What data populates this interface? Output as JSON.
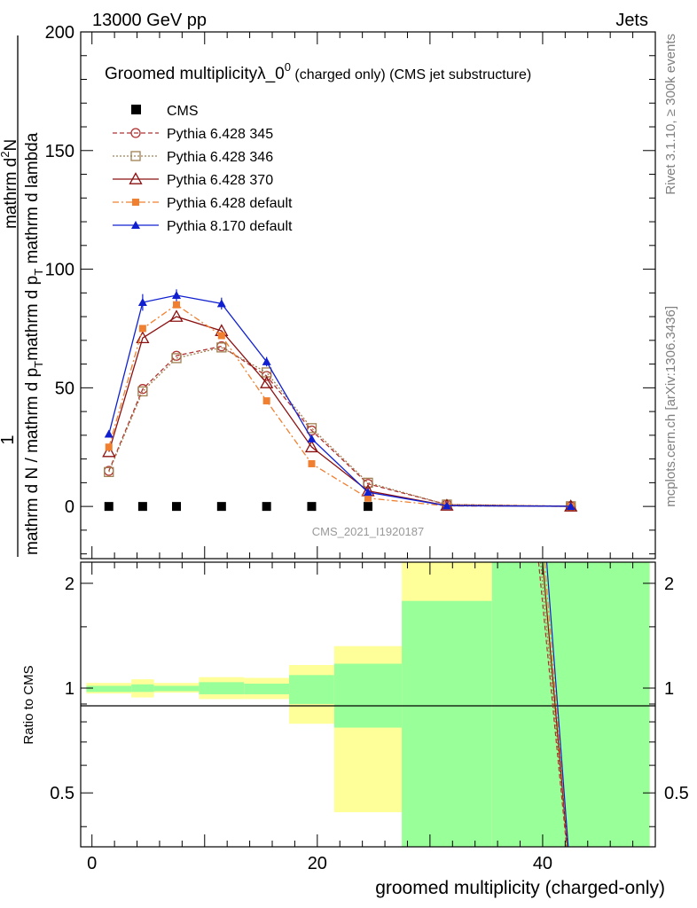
{
  "header": {
    "left": "13000 GeV pp",
    "right": "Jets"
  },
  "side": {
    "rivet": "Rivet 3.1.10, ≥ 300k events",
    "mcplots": "mcplots.cern.ch [arXiv:1306.3436]"
  },
  "watermark": "CMS_2021_I1920187",
  "legend_title": {
    "main": "Groomed multiplicityλ_0",
    "sup": "0",
    "rest": " (charged only) (CMS jet substructure)"
  },
  "ylabel": {
    "one": "1",
    "den": "mathrm d N / mathrm d p",
    "den_sub": "T",
    "num": "mathrm d",
    "num_sup": "2",
    "num_tail": "N",
    "bottom": "mathrm d p",
    "bottom_sub": "T",
    "bottom_tail": " mathrm d lambda"
  },
  "ratio_ylabel": "Ratio to CMS",
  "chart_data": {
    "type": "line",
    "title": "Groomed multiplicityλ_0^0 (charged only) (CMS jet substructure)",
    "xlabel": "groomed multiplicity (charged-only)",
    "ylabel": "1/(dN/dpT) d2N/(dpT dlambda)",
    "xlim": [
      -1,
      50
    ],
    "ylim": [
      -22,
      200
    ],
    "x_ticks": [
      0,
      20,
      40
    ],
    "x_tick_labels": [
      "0",
      "20",
      "40"
    ],
    "y_ticks": [
      0,
      50,
      100,
      150,
      200
    ],
    "y_tick_labels": [
      "0",
      "50",
      "100",
      "150",
      "200"
    ],
    "ratio": {
      "ylim": [
        0.35,
        2.3
      ],
      "y_ticks": [
        0.5,
        1,
        2
      ],
      "y_tick_labels": [
        "0.5",
        "1",
        "2"
      ],
      "bands": [
        {
          "x0": -0.5,
          "x1": 3.5,
          "g_lo": 0.975,
          "g_hi": 1.015,
          "y_lo": 0.965,
          "y_hi": 1.035
        },
        {
          "x0": 3.5,
          "x1": 5.5,
          "g_lo": 0.975,
          "g_hi": 1.025,
          "y_lo": 0.94,
          "y_hi": 1.06
        },
        {
          "x0": 5.5,
          "x1": 9.5,
          "g_lo": 0.98,
          "g_hi": 1.015,
          "y_lo": 0.97,
          "y_hi": 1.035
        },
        {
          "x0": 9.5,
          "x1": 13.5,
          "g_lo": 0.96,
          "g_hi": 1.04,
          "y_lo": 0.93,
          "y_hi": 1.075
        },
        {
          "x0": 13.5,
          "x1": 17.5,
          "g_lo": 0.96,
          "g_hi": 1.03,
          "y_lo": 0.93,
          "y_hi": 1.07
        },
        {
          "x0": 17.5,
          "x1": 21.5,
          "g_lo": 0.9,
          "g_hi": 1.09,
          "y_lo": 0.79,
          "y_hi": 1.165
        },
        {
          "x0": 21.5,
          "x1": 27.5,
          "g_lo": 0.77,
          "g_hi": 1.175,
          "y_lo": 0.44,
          "y_hi": 1.32
        },
        {
          "x0": 27.5,
          "x1": 35.5,
          "g_lo": 0.35,
          "g_hi": 1.78,
          "y_lo": 0.35,
          "y_hi": 2.3
        },
        {
          "x0": 35.5,
          "x1": 49.5,
          "g_lo": 0.35,
          "g_hi": 2.3,
          "y_lo": 0.35,
          "y_hi": 2.3
        }
      ],
      "mc_steep_line": {
        "x": [
          40.0,
          42.2
        ],
        "ratio": [
          2.3,
          0.35
        ]
      }
    },
    "data": {
      "name": "CMS",
      "x": [
        1.5,
        4.5,
        7.5,
        11.5,
        15.5,
        19.5,
        24.5
      ],
      "values": [
        0,
        0,
        0,
        0,
        0,
        0,
        0
      ]
    },
    "series": [
      {
        "name": "Pythia 6.428 345",
        "color": "#b03030",
        "dash": "5,3",
        "marker": "circle-open",
        "x": [
          1.5,
          4.5,
          7.5,
          11.5,
          15.5,
          19.5,
          24.5,
          31.5,
          42.5
        ],
        "values": [
          15,
          49.5,
          63.5,
          67.5,
          55,
          32,
          9.5,
          0.8,
          0.1
        ]
      },
      {
        "name": "Pythia 6.428 346",
        "color": "#a08050",
        "dash": "2,2",
        "marker": "square-open",
        "x": [
          1.5,
          4.5,
          7.5,
          11.5,
          15.5,
          19.5,
          24.5,
          31.5,
          42.5
        ],
        "values": [
          14.5,
          48.5,
          62.5,
          67,
          56.5,
          33,
          10,
          0.8,
          0.1
        ]
      },
      {
        "name": "Pythia 6.428 370",
        "color": "#8b1010",
        "dash": "",
        "marker": "triangle-open",
        "x": [
          1.5,
          4.5,
          7.5,
          11.5,
          15.5,
          19.5,
          24.5,
          31.5,
          42.5
        ],
        "values": [
          23,
          71,
          80,
          74,
          52,
          25,
          6.5,
          0.4,
          0.05
        ]
      },
      {
        "name": "Pythia 6.428 default",
        "color": "#f08030",
        "dash": "7,3,2,3",
        "marker": "square-filled",
        "x": [
          1.5,
          4.5,
          7.5,
          11.5,
          15.5,
          19.5,
          24.5,
          31.5,
          42.5
        ],
        "values": [
          25,
          75,
          85,
          72,
          44.5,
          18,
          3.5,
          0.2,
          0.02
        ]
      },
      {
        "name": "Pythia 8.170 default",
        "color": "#1020d0",
        "dash": "",
        "marker": "triangle-filled",
        "x": [
          1.5,
          4.5,
          7.5,
          11.5,
          15.5,
          19.5,
          24.5,
          31.5,
          42.5
        ],
        "values": [
          30.5,
          86,
          89,
          85.5,
          61,
          28.5,
          6,
          0.3,
          0.05
        ],
        "errors": [
          1.5,
          3.5,
          2.5,
          2.5,
          2,
          1.5,
          0.5,
          0.1,
          0.05
        ]
      }
    ]
  }
}
